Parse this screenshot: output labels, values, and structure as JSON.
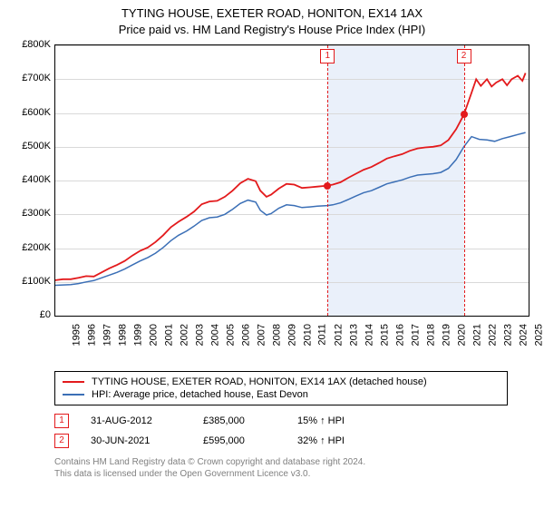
{
  "title_line1": "TYTING HOUSE, EXETER ROAD, HONITON, EX14 1AX",
  "title_line2": "Price paid vs. HM Land Registry's House Price Index (HPI)",
  "chart": {
    "type": "line",
    "xlim": [
      1995,
      2025.7
    ],
    "ylim": [
      0,
      800000
    ],
    "ytick_step": 100000,
    "yticks": [
      "£0",
      "£100K",
      "£200K",
      "£300K",
      "£400K",
      "£500K",
      "£600K",
      "£700K",
      "£800K"
    ],
    "xticks": [
      1995,
      1996,
      1997,
      1998,
      1999,
      2000,
      2001,
      2002,
      2003,
      2004,
      2005,
      2006,
      2007,
      2008,
      2009,
      2010,
      2011,
      2012,
      2013,
      2014,
      2015,
      2016,
      2017,
      2018,
      2019,
      2020,
      2021,
      2022,
      2023,
      2024,
      2025
    ],
    "grid_color": "#d9d9d9",
    "background_color": "#ffffff",
    "shade_color": "#eaf0fa",
    "series": [
      {
        "name": "property",
        "color": "#e31a1c",
        "width": 1.8,
        "points": [
          [
            1995,
            105000
          ],
          [
            1995.5,
            108000
          ],
          [
            1996,
            108000
          ],
          [
            1996.5,
            112000
          ],
          [
            1997,
            117000
          ],
          [
            1997.5,
            116000
          ],
          [
            1998,
            128000
          ],
          [
            1998.5,
            140000
          ],
          [
            1999,
            150000
          ],
          [
            1999.5,
            162000
          ],
          [
            2000,
            178000
          ],
          [
            2000.5,
            192000
          ],
          [
            2001,
            202000
          ],
          [
            2001.5,
            218000
          ],
          [
            2002,
            238000
          ],
          [
            2002.5,
            262000
          ],
          [
            2003,
            278000
          ],
          [
            2003.5,
            292000
          ],
          [
            2004,
            308000
          ],
          [
            2004.5,
            330000
          ],
          [
            2005,
            338000
          ],
          [
            2005.5,
            340000
          ],
          [
            2006,
            352000
          ],
          [
            2006.5,
            370000
          ],
          [
            2007,
            392000
          ],
          [
            2007.5,
            405000
          ],
          [
            2008,
            398000
          ],
          [
            2008.3,
            370000
          ],
          [
            2008.7,
            352000
          ],
          [
            2009,
            358000
          ],
          [
            2009.5,
            376000
          ],
          [
            2010,
            390000
          ],
          [
            2010.5,
            388000
          ],
          [
            2011,
            378000
          ],
          [
            2011.5,
            380000
          ],
          [
            2012,
            382000
          ],
          [
            2012.66,
            385000
          ],
          [
            2013,
            388000
          ],
          [
            2013.5,
            395000
          ],
          [
            2014,
            408000
          ],
          [
            2014.5,
            420000
          ],
          [
            2015,
            432000
          ],
          [
            2015.5,
            440000
          ],
          [
            2016,
            452000
          ],
          [
            2016.5,
            465000
          ],
          [
            2017,
            472000
          ],
          [
            2017.5,
            478000
          ],
          [
            2018,
            488000
          ],
          [
            2018.5,
            495000
          ],
          [
            2019,
            498000
          ],
          [
            2019.5,
            500000
          ],
          [
            2020,
            504000
          ],
          [
            2020.5,
            520000
          ],
          [
            2021,
            552000
          ],
          [
            2021.5,
            595000
          ],
          [
            2022,
            660000
          ],
          [
            2022.3,
            700000
          ],
          [
            2022.6,
            680000
          ],
          [
            2023,
            700000
          ],
          [
            2023.3,
            678000
          ],
          [
            2023.6,
            690000
          ],
          [
            2024,
            700000
          ],
          [
            2024.3,
            682000
          ],
          [
            2024.6,
            700000
          ],
          [
            2025,
            710000
          ],
          [
            2025.3,
            695000
          ],
          [
            2025.5,
            718000
          ]
        ]
      },
      {
        "name": "hpi",
        "color": "#3b6fb6",
        "width": 1.5,
        "points": [
          [
            1995,
            90000
          ],
          [
            1995.5,
            91000
          ],
          [
            1996,
            92000
          ],
          [
            1996.5,
            95000
          ],
          [
            1997,
            100000
          ],
          [
            1997.5,
            104000
          ],
          [
            1998,
            112000
          ],
          [
            1998.5,
            120000
          ],
          [
            1999,
            128000
          ],
          [
            1999.5,
            138000
          ],
          [
            2000,
            150000
          ],
          [
            2000.5,
            162000
          ],
          [
            2001,
            172000
          ],
          [
            2001.5,
            185000
          ],
          [
            2002,
            202000
          ],
          [
            2002.5,
            222000
          ],
          [
            2003,
            238000
          ],
          [
            2003.5,
            250000
          ],
          [
            2004,
            265000
          ],
          [
            2004.5,
            282000
          ],
          [
            2005,
            290000
          ],
          [
            2005.5,
            292000
          ],
          [
            2006,
            300000
          ],
          [
            2006.5,
            315000
          ],
          [
            2007,
            332000
          ],
          [
            2007.5,
            342000
          ],
          [
            2008,
            336000
          ],
          [
            2008.3,
            312000
          ],
          [
            2008.7,
            298000
          ],
          [
            2009,
            302000
          ],
          [
            2009.5,
            318000
          ],
          [
            2010,
            328000
          ],
          [
            2010.5,
            326000
          ],
          [
            2011,
            320000
          ],
          [
            2011.5,
            322000
          ],
          [
            2012,
            324000
          ],
          [
            2012.66,
            326000
          ],
          [
            2013,
            328000
          ],
          [
            2013.5,
            334000
          ],
          [
            2014,
            344000
          ],
          [
            2014.5,
            354000
          ],
          [
            2015,
            364000
          ],
          [
            2015.5,
            370000
          ],
          [
            2016,
            380000
          ],
          [
            2016.5,
            390000
          ],
          [
            2017,
            396000
          ],
          [
            2017.5,
            402000
          ],
          [
            2018,
            410000
          ],
          [
            2018.5,
            416000
          ],
          [
            2019,
            418000
          ],
          [
            2019.5,
            420000
          ],
          [
            2020,
            424000
          ],
          [
            2020.5,
            436000
          ],
          [
            2021,
            462000
          ],
          [
            2021.5,
            500000
          ],
          [
            2022,
            530000
          ],
          [
            2022.5,
            522000
          ],
          [
            2023,
            520000
          ],
          [
            2023.5,
            516000
          ],
          [
            2024,
            524000
          ],
          [
            2024.5,
            530000
          ],
          [
            2025,
            536000
          ],
          [
            2025.5,
            542000
          ]
        ]
      }
    ],
    "markers": [
      {
        "n": "1",
        "x": 2012.66,
        "y": 385000,
        "color": "#e31a1c"
      },
      {
        "n": "2",
        "x": 2021.5,
        "y": 595000,
        "color": "#e31a1c"
      }
    ]
  },
  "legend": [
    {
      "color": "#e31a1c",
      "label": "TYTING HOUSE, EXETER ROAD, HONITON, EX14 1AX (detached house)"
    },
    {
      "color": "#3b6fb6",
      "label": "HPI: Average price, detached house, East Devon"
    }
  ],
  "sales": [
    {
      "n": "1",
      "color": "#e31a1c",
      "date": "31-AUG-2012",
      "price": "£385,000",
      "pct": "15% ↑ HPI"
    },
    {
      "n": "2",
      "color": "#e31a1c",
      "date": "30-JUN-2021",
      "price": "£595,000",
      "pct": "32% ↑ HPI"
    }
  ],
  "footer_line1": "Contains HM Land Registry data © Crown copyright and database right 2024.",
  "footer_line2": "This data is licensed under the Open Government Licence v3.0.",
  "footer_color": "#808080"
}
